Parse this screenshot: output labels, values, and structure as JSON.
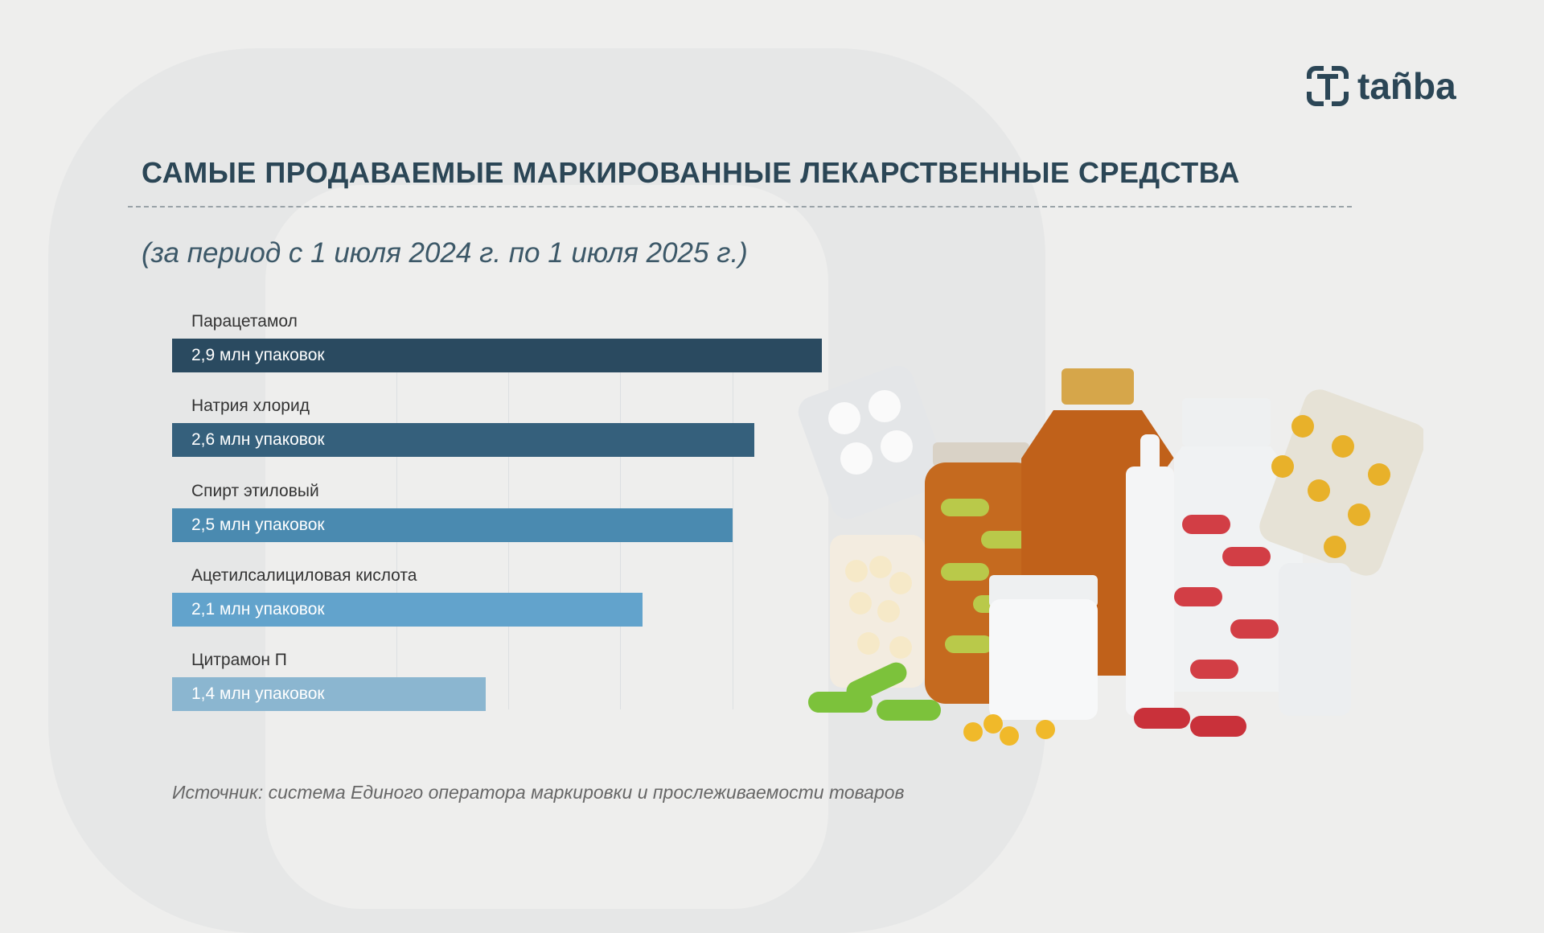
{
  "logo": {
    "text": "tañba"
  },
  "header": {
    "title": "САМЫЕ ПРОДАВАЕМЫЕ МАРКИРОВАННЫЕ ЛЕКАРСТВЕННЫЕ СРЕДСТВА",
    "subtitle": "(за период с 1 июля 2024 г. по 1 июля 2025 г.)"
  },
  "chart_data": {
    "type": "bar",
    "orientation": "horizontal",
    "categories": [
      "Парацетамол",
      "Натрия хлорид",
      "Спирт этиловый",
      "Ацетилсалициловая кислота",
      "Цитрамон П"
    ],
    "values": [
      2.9,
      2.6,
      2.5,
      2.1,
      1.4
    ],
    "unit": "млн упаковок",
    "data_labels": [
      "2,9 млн упаковок",
      "2,6 млн упаковок",
      "2,5 млн упаковок",
      "2,1 млн упаковок",
      "1,4 млн упаковок"
    ],
    "colors": [
      "#2a4a60",
      "#35607c",
      "#4a8ab0",
      "#62a3cc",
      "#8bb6d0"
    ],
    "xlim": [
      0,
      2.9
    ],
    "grid": true
  },
  "footer": {
    "source": "Источник: система Единого оператора маркировки и прослеживаемости товаров"
  }
}
